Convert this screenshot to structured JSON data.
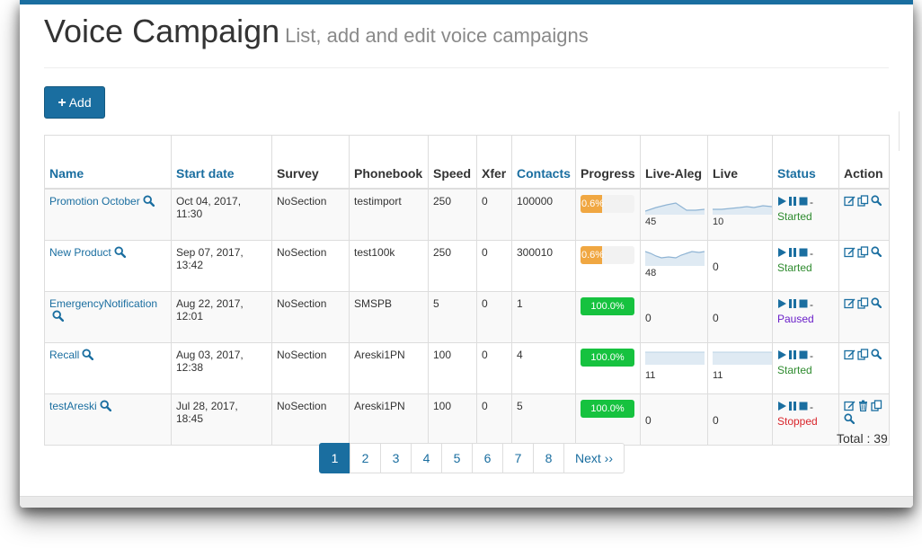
{
  "header": {
    "title": "Voice Campaign",
    "subtitle": "List, add and edit voice campaigns"
  },
  "toolbar": {
    "add_label": "Add"
  },
  "table": {
    "columns": [
      "Name",
      "Start date",
      "Survey",
      "Phonebook",
      "Speed",
      "Xfer",
      "Contacts",
      "Progress",
      "Live-Aleg",
      "Live",
      "Status",
      "Action"
    ],
    "rows": [
      {
        "name": "Promotion October",
        "start_date": "Oct 04, 2017,",
        "start_time": "11:30",
        "survey": "NoSection",
        "phonebook": "testimport",
        "speed": "250",
        "xfer": "0",
        "contacts": "100000",
        "progress": 0.6,
        "progress_label": "0.6%",
        "aleg": "45",
        "live": "10",
        "status": "Started"
      },
      {
        "name": "New Product",
        "start_date": "Sep 07, 2017,",
        "start_time": "13:42",
        "survey": "NoSection",
        "phonebook": "test100k",
        "speed": "250",
        "xfer": "0",
        "contacts": "300010",
        "progress": 0.6,
        "progress_label": "0.6%",
        "aleg": "48",
        "live": "0",
        "status": "Started"
      },
      {
        "name": "EmergencyNotification",
        "start_date": "Aug 22, 2017,",
        "start_time": "12:01",
        "survey": "NoSection",
        "phonebook": "SMSPB",
        "speed": "5",
        "xfer": "0",
        "contacts": "1",
        "progress": 100,
        "progress_label": "100.0%",
        "aleg": "0",
        "live": "0",
        "status": "Paused"
      },
      {
        "name": "Recall",
        "start_date": "Aug 03, 2017,",
        "start_time": "12:38",
        "survey": "NoSection",
        "phonebook": "Areski1PN",
        "speed": "100",
        "xfer": "0",
        "contacts": "4",
        "progress": 100,
        "progress_label": "100.0%",
        "aleg": "11",
        "live": "11",
        "status": "Started"
      },
      {
        "name": "testAreski",
        "start_date": "Jul 28, 2017,",
        "start_time": "18:45",
        "survey": "NoSection",
        "phonebook": "Areski1PN",
        "speed": "100",
        "xfer": "0",
        "contacts": "5",
        "progress": 100,
        "progress_label": "100.0%",
        "aleg": "0",
        "live": "0",
        "status": "Stopped"
      }
    ]
  },
  "status_colors": {
    "Started": "#2e8b2e",
    "Paused": "#6a1fc9",
    "Stopped": "#d9252b"
  },
  "icons": {
    "search": "search-icon",
    "play": "play-icon",
    "pause": "pause-icon",
    "stop": "stop-icon",
    "edit": "edit-icon",
    "duplicate": "duplicate-icon",
    "delete": "trash-icon"
  },
  "colors": {
    "accent": "#1a6ea0",
    "progress_low": "#f0a742",
    "progress_done": "#16c23f"
  },
  "footer": {
    "total_label": "Total : 39"
  },
  "pagination": {
    "pages": [
      "1",
      "2",
      "3",
      "4",
      "5",
      "6",
      "7",
      "8"
    ],
    "active": "1",
    "next_label": "Next ››"
  }
}
